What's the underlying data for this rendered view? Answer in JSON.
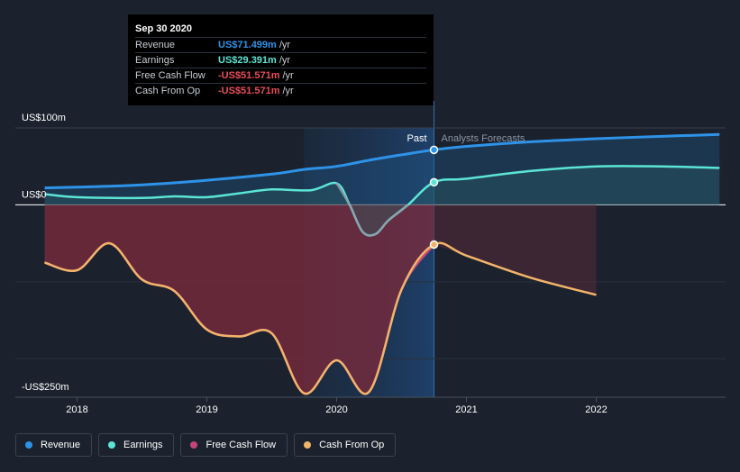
{
  "chart_data": {
    "type": "line",
    "y_unit_labels": {
      "top": "US$100m",
      "zero": "US$0",
      "bottom": "-US$250m"
    },
    "ylim": [
      -250,
      100
    ],
    "xlim": [
      2017.7,
      2022.95
    ],
    "x_ticks": [
      {
        "value": 2018,
        "label": "2018"
      },
      {
        "value": 2019,
        "label": "2019"
      },
      {
        "value": 2020,
        "label": "2020"
      },
      {
        "value": 2021,
        "label": "2021"
      },
      {
        "value": 2022,
        "label": "2022"
      }
    ],
    "split_x": 2020.75,
    "highlight_start_x": 2019.75,
    "regions": {
      "past": "Past",
      "forecast": "Analysts Forecasts"
    },
    "grid": true,
    "legend_position": "bottom-left",
    "series": [
      {
        "name": "Revenue",
        "key": "revenue",
        "color": "#2e93e8",
        "fill": true,
        "marker_x": 2020.75,
        "points": [
          [
            2017.75,
            22
          ],
          [
            2018.0,
            23
          ],
          [
            2018.5,
            26
          ],
          [
            2019.0,
            32
          ],
          [
            2019.5,
            40
          ],
          [
            2019.75,
            46
          ],
          [
            2020.0,
            50
          ],
          [
            2020.25,
            58
          ],
          [
            2020.5,
            65
          ],
          [
            2020.75,
            71.5
          ],
          [
            2021.0,
            76
          ],
          [
            2021.5,
            82
          ],
          [
            2022.0,
            86
          ],
          [
            2022.5,
            89
          ],
          [
            2022.95,
            91.5
          ]
        ]
      },
      {
        "name": "Earnings",
        "key": "earnings",
        "color": "#5ce5d6",
        "fill": true,
        "marker_x": 2020.75,
        "points": [
          [
            2017.75,
            14
          ],
          [
            2018.0,
            10
          ],
          [
            2018.5,
            9
          ],
          [
            2018.75,
            11
          ],
          [
            2019.0,
            10
          ],
          [
            2019.25,
            15
          ],
          [
            2019.5,
            20
          ],
          [
            2019.8,
            19
          ],
          [
            2020.0,
            28
          ],
          [
            2020.1,
            0
          ],
          [
            2020.2,
            -35
          ],
          [
            2020.3,
            -38
          ],
          [
            2020.4,
            -20
          ],
          [
            2020.55,
            0
          ],
          [
            2020.75,
            29.4
          ],
          [
            2021.0,
            34
          ],
          [
            2021.5,
            44
          ],
          [
            2022.0,
            50
          ],
          [
            2022.5,
            50
          ],
          [
            2022.95,
            48
          ]
        ]
      },
      {
        "name": "Free Cash Flow",
        "key": "fcf",
        "color": "#c4457b",
        "fill": false,
        "marker_x": 2020.75,
        "points": [
          [
            2017.75,
            -75
          ],
          [
            2018.0,
            -85
          ],
          [
            2018.25,
            -50
          ],
          [
            2018.5,
            -97
          ],
          [
            2018.75,
            -112
          ],
          [
            2019.0,
            -162
          ],
          [
            2019.25,
            -171
          ],
          [
            2019.5,
            -167
          ],
          [
            2019.75,
            -245
          ],
          [
            2020.0,
            -202
          ],
          [
            2020.25,
            -243
          ],
          [
            2020.5,
            -110
          ],
          [
            2020.75,
            -51.6
          ]
        ]
      },
      {
        "name": "Cash From Op",
        "key": "cfo",
        "color": "#f2b46b",
        "fill": false,
        "marker_x": 2020.75,
        "points": [
          [
            2017.75,
            -75
          ],
          [
            2018.0,
            -85
          ],
          [
            2018.25,
            -50
          ],
          [
            2018.5,
            -97
          ],
          [
            2018.75,
            -112
          ],
          [
            2019.0,
            -162
          ],
          [
            2019.25,
            -171
          ],
          [
            2019.5,
            -167
          ],
          [
            2019.75,
            -245
          ],
          [
            2020.0,
            -202
          ],
          [
            2020.25,
            -243
          ],
          [
            2020.5,
            -110
          ],
          [
            2020.75,
            -51.6
          ],
          [
            2021.0,
            -66
          ],
          [
            2021.5,
            -95
          ],
          [
            2022.0,
            -117
          ]
        ]
      }
    ]
  },
  "tooltip": {
    "date": "Sep 30 2020",
    "rows": [
      {
        "label": "Revenue",
        "value": "US$71.499m",
        "unit": "/yr",
        "color": "#2e93e8"
      },
      {
        "label": "Earnings",
        "value": "US$29.391m",
        "unit": "/yr",
        "color": "#5ce5d6"
      },
      {
        "label": "Free Cash Flow",
        "value": "-US$51.571m",
        "unit": "/yr",
        "color": "#e84c5b"
      },
      {
        "label": "Cash From Op",
        "value": "-US$51.571m",
        "unit": "/yr",
        "color": "#e84c5b"
      }
    ]
  },
  "legend": [
    {
      "label": "Revenue",
      "color": "#2e93e8"
    },
    {
      "label": "Earnings",
      "color": "#5ce5d6"
    },
    {
      "label": "Free Cash Flow",
      "color": "#c4457b"
    },
    {
      "label": "Cash From Op",
      "color": "#f2b46b"
    }
  ]
}
